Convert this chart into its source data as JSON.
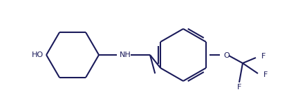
{
  "bg_color": "#ffffff",
  "line_color": "#1a1a5a",
  "text_color": "#1a1a5a",
  "bond_lw": 1.5,
  "figsize": [
    4.18,
    1.5
  ],
  "dpi": 100,
  "xlim": [
    0,
    418
  ],
  "ylim": [
    0,
    150
  ]
}
